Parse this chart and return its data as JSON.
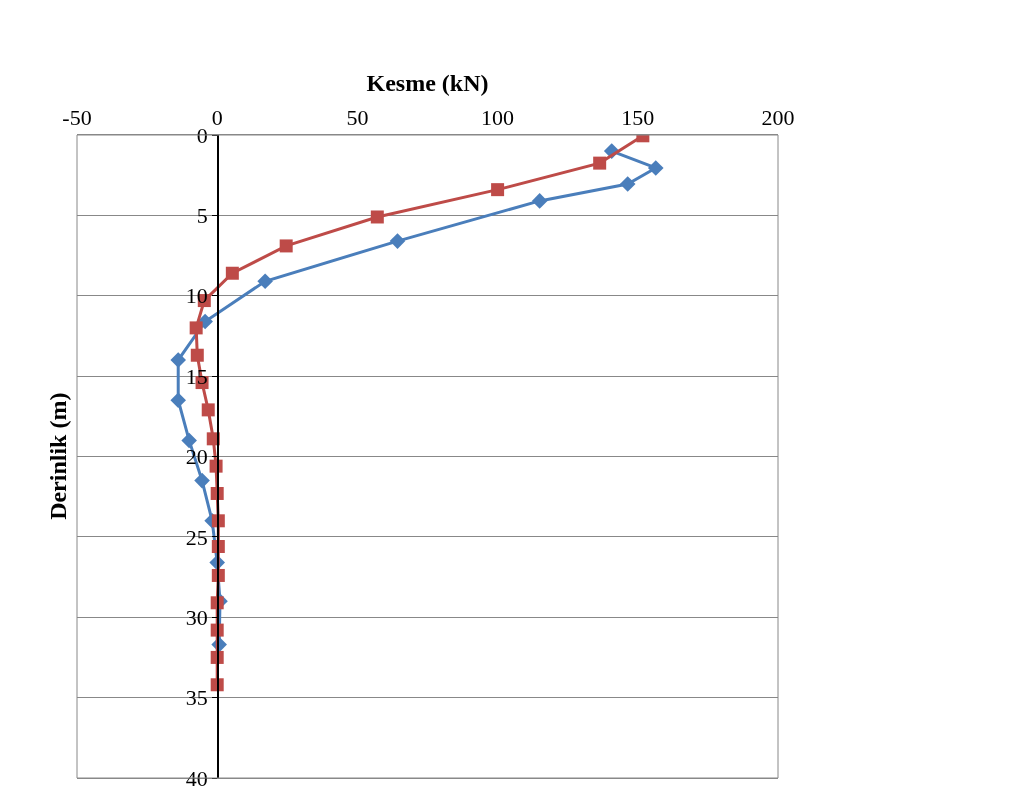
{
  "chart_data": {
    "type": "line",
    "xlabel": "Kesme (kN)",
    "ylabel": "Derinlik (m)",
    "xlim": [
      -50,
      200
    ],
    "xticks": [
      -50,
      0,
      50,
      100,
      150,
      200
    ],
    "ylim": [
      40,
      0
    ],
    "yticks": [
      0,
      5,
      10,
      15,
      20,
      25,
      30,
      35,
      40
    ],
    "grid": "y",
    "series": [
      {
        "color": "#4a7ebb",
        "marker": "diamond",
        "x": [
          140.7,
          156.4,
          146.4,
          115,
          64.3,
          17.1,
          -4.3,
          -13.9,
          -13.9,
          -10,
          -5.4,
          -1.8,
          0,
          1,
          0.7
        ],
        "values": [
          1,
          2.05,
          3.05,
          4.1,
          6.6,
          9.1,
          11.6,
          14,
          16.5,
          19,
          21.5,
          24,
          26.6,
          29,
          31.7
        ]
      },
      {
        "color": "#be4b48",
        "marker": "square",
        "x": [
          151.8,
          136.4,
          100,
          57.1,
          24.6,
          5.4,
          -4.6,
          -7.5,
          -7.1,
          -5.4,
          -3.2,
          -1.4,
          -0.4,
          0,
          0.4,
          0.4,
          0.4,
          0,
          0,
          0,
          0
        ],
        "values": [
          0.05,
          1.75,
          3.4,
          5.1,
          6.9,
          8.6,
          10.3,
          12,
          13.7,
          15.4,
          17.1,
          18.9,
          20.6,
          22.3,
          24,
          25.6,
          27.4,
          29.1,
          30.8,
          32.5,
          34.2
        ]
      }
    ]
  }
}
